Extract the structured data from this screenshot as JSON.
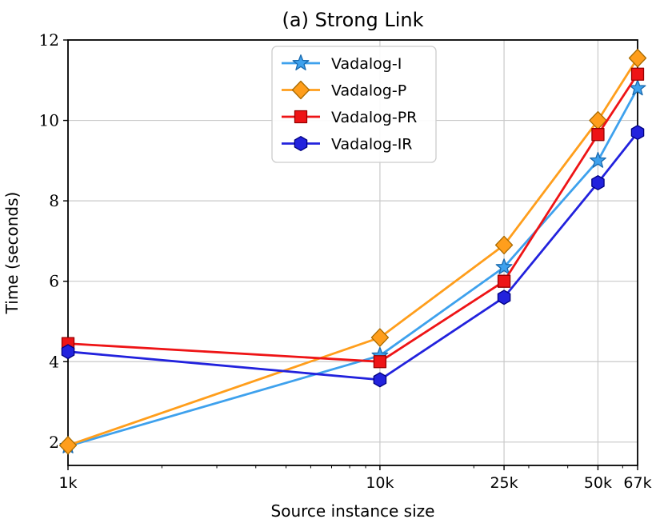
{
  "figure": {
    "title": "(a) Strong Link",
    "xlabel": "Source instance size",
    "ylabel": "Time (seconds)"
  },
  "chart_data": {
    "type": "line",
    "title": "(a) Strong Link",
    "xlabel": "Source instance size",
    "ylabel": "Time (seconds)",
    "x_scale": "log",
    "x": [
      1000,
      10000,
      25000,
      50000,
      67000
    ],
    "x_tick_labels": [
      "1k",
      "10k",
      "25k",
      "50k",
      "67k"
    ],
    "x_minor_ticks": [
      2000,
      3000,
      4000,
      5000,
      6000,
      7000,
      8000,
      9000,
      20000,
      30000,
      40000,
      60000
    ],
    "y_ticks": [
      2,
      4,
      6,
      8,
      10,
      12
    ],
    "ylim": [
      1.42,
      12
    ],
    "grid": true,
    "grid_color": "#c9c9c9",
    "spine_color": "#000000",
    "legend_position": "upper-center",
    "series": [
      {
        "name": "Vadalog-I",
        "marker": "star-marker",
        "color": "#3EA1ED",
        "edge_color": "#1A6AAE",
        "values": [
          1.9,
          4.15,
          6.35,
          9.0,
          10.8
        ]
      },
      {
        "name": "Vadalog-P",
        "marker": "diamond-marker",
        "color": "#FF9E1C",
        "edge_color": "#A86A00",
        "values": [
          1.92,
          4.6,
          6.9,
          10.0,
          11.55
        ]
      },
      {
        "name": "Vadalog-PR",
        "marker": "square-marker",
        "color": "#EE1416",
        "edge_color": "#970000",
        "values": [
          4.45,
          4.0,
          6.0,
          9.65,
          11.15
        ]
      },
      {
        "name": "Vadalog-IR",
        "marker": "hexagon-marker",
        "color": "#2222DD",
        "edge_color": "#000080",
        "values": [
          4.25,
          3.55,
          5.6,
          8.45,
          9.7
        ]
      }
    ]
  }
}
